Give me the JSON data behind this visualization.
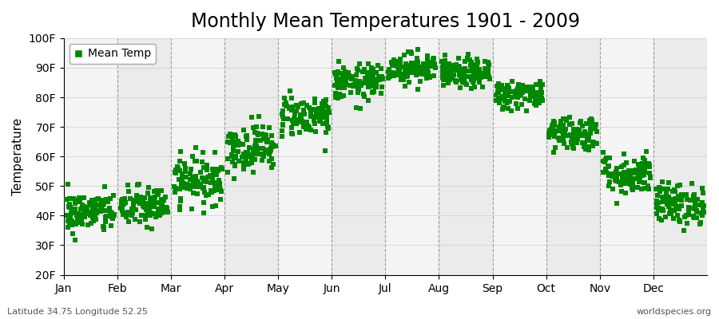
{
  "title": "Monthly Mean Temperatures 1901 - 2009",
  "ylabel": "Temperature",
  "xlabel": "",
  "footer_left": "Latitude 34.75 Longitude 52.25",
  "footer_right": "worldspecies.org",
  "legend_label": "Mean Temp",
  "ylim": [
    20,
    100
  ],
  "ytick_labels": [
    "20F",
    "30F",
    "40F",
    "50F",
    "60F",
    "70F",
    "80F",
    "90F",
    "100F"
  ],
  "ytick_values": [
    20,
    30,
    40,
    50,
    60,
    70,
    80,
    90,
    100
  ],
  "months": [
    "Jan",
    "Feb",
    "Mar",
    "Apr",
    "May",
    "Jun",
    "Jul",
    "Aug",
    "Sep",
    "Oct",
    "Nov",
    "Dec"
  ],
  "month_means_f": [
    41,
    43,
    52,
    63,
    74,
    85,
    90,
    88,
    81,
    68,
    54,
    44
  ],
  "month_stds_f": [
    3.5,
    3.5,
    4.0,
    4.0,
    3.5,
    3.0,
    2.5,
    2.5,
    2.5,
    3.0,
    3.5,
    3.5
  ],
  "dot_color": "#008800",
  "background_color": "#ffffff",
  "band_colors": [
    "#f4f4f4",
    "#ebebeb"
  ],
  "grid_color": "#777777",
  "title_fontsize": 17,
  "axis_fontsize": 11,
  "tick_fontsize": 10,
  "n_years": 109,
  "marker_size": 18,
  "marker": "s"
}
